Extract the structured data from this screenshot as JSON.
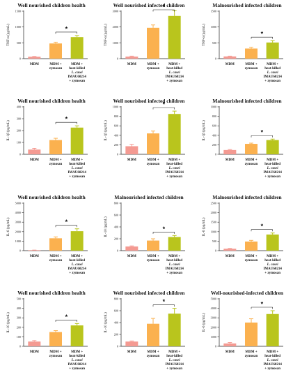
{
  "palette": {
    "mdm": "#f49a92",
    "zymosan": "#fbb14f",
    "heatkilled": "#b9c51d"
  },
  "categories": [
    [
      "MDM"
    ],
    [
      "MDM +",
      "zymosan"
    ],
    [
      "MDM +",
      "heat-killed",
      "L. casei",
      "IMAU60214",
      "+ zymosan"
    ]
  ],
  "chart_data": [
    {
      "type": "bar",
      "title": "Well nourished children health",
      "ylabel": "TNF-α (pg/mL)",
      "ylim": [
        0,
        1500
      ],
      "yticks": [
        "0",
        "500",
        "1000",
        "1500"
      ],
      "categories": [
        "MDM",
        "MDM + zymosan",
        "MDM + heat-killed L. casei IMAU60214 + zymosan"
      ],
      "values": [
        60,
        480,
        680
      ],
      "errors": [
        10,
        40,
        50
      ],
      "significance": "*"
    },
    {
      "type": "bar",
      "title": "Well nourished infected children",
      "ylabel": "TNF-α (pg/mL)",
      "ylim": [
        0,
        3000
      ],
      "yticks": [
        "0",
        "1000",
        "2000",
        "3000"
      ],
      "categories": [
        "MDM",
        "MDM + zymosan",
        "MDM + heat-killed L. casei IMAU60214 + zymosan"
      ],
      "values": [
        130,
        1950,
        2700
      ],
      "errors": [
        30,
        180,
        330
      ],
      "significance": "*"
    },
    {
      "type": "bar",
      "title": "Malnourished infected children",
      "ylabel": "TNF-α (pg/mL)",
      "ylim": [
        0,
        1500
      ],
      "yticks": [
        "0",
        "500",
        "1000",
        "1500"
      ],
      "categories": [
        "MDM",
        "MDM + zymosan",
        "MDM + heat-killed L. casei IMAU60214 + zymosan"
      ],
      "values": [
        70,
        320,
        510
      ],
      "errors": [
        10,
        40,
        60
      ],
      "significance": "*"
    },
    {
      "type": "bar",
      "title": "Well nourished children health",
      "ylabel": "IL-1β (pg/mL)",
      "ylim": [
        0,
        400
      ],
      "yticks": [
        "0",
        "100",
        "200",
        "300",
        "400"
      ],
      "categories": [
        "MDM",
        "MDM + zymosan",
        "MDM + heat-killed L. casei IMAU60214 + zymosan"
      ],
      "values": [
        40,
        120,
        225
      ],
      "errors": [
        10,
        15,
        15
      ],
      "significance": "*"
    },
    {
      "type": "bar",
      "title": "Well nourished infected children",
      "ylabel": "IL-1β (pg/mL)",
      "ylim": [
        0,
        1000
      ],
      "yticks": [
        "0",
        "200",
        "400",
        "600",
        "800",
        "1000"
      ],
      "categories": [
        "MDM",
        "MDM + zymosan",
        "MDM + heat-killed L. casei IMAU60214 + zymosan"
      ],
      "values": [
        170,
        440,
        850
      ],
      "errors": [
        40,
        50,
        60
      ],
      "significance": "*"
    },
    {
      "type": "bar",
      "title": "Malnourished infected children",
      "ylabel": "IL-1β (pg/mL)",
      "ylim": [
        0,
        1000
      ],
      "yticks": [
        "0",
        "200",
        "400",
        "600",
        "800",
        "1000"
      ],
      "categories": [
        "MDM",
        "MDM + zymosan",
        "MDM + heat-killed L. casei IMAU60214 + zymosan"
      ],
      "values": [
        90,
        220,
        300
      ],
      "errors": [
        10,
        15,
        20
      ],
      "significance": "*"
    },
    {
      "type": "bar",
      "title": "Well nourished children health",
      "ylabel": "IL-6 (pg/mL)",
      "ylim": [
        0,
        5000
      ],
      "yticks": [
        "0",
        "1000",
        "2000",
        "3000",
        "4000",
        "5000"
      ],
      "categories": [
        "MDM",
        "MDM + zymosan",
        "MDM + heat-killed L. casei IMAU60214 + zymosan"
      ],
      "values": [
        50,
        1300,
        2050
      ],
      "errors": [
        10,
        150,
        250
      ],
      "significance": "*"
    },
    {
      "type": "bar",
      "title": "Malnourished infected children",
      "ylabel": "IL-10 (pg/mL)",
      "ylim": [
        0,
        800
      ],
      "yticks": [
        "0",
        "200",
        "400",
        "600",
        "800"
      ],
      "categories": [
        "MDM",
        "MDM + zymosan",
        "MDM + heat-killed L. casei IMAU60214 + zymosan"
      ],
      "values": [
        70,
        170,
        230
      ],
      "errors": [
        10,
        30,
        25
      ],
      "significance": "*"
    },
    {
      "type": "bar",
      "title": "Malnourished infected children",
      "ylabel": "IL-6 (pg/mL)",
      "ylim": [
        0,
        2500
      ],
      "yticks": [
        "0",
        "500",
        "1000",
        "1500",
        "2000",
        "2500"
      ],
      "categories": [
        "MDM",
        "MDM + zymosan",
        "MDM + heat-killed L. casei IMAU60214 + zymosan"
      ],
      "values": [
        100,
        480,
        850
      ],
      "errors": [
        20,
        60,
        80
      ],
      "significance": "*"
    },
    {
      "type": "bar",
      "title": "Well nourished children health",
      "ylabel": "IL-10 (pg/mL)",
      "ylim": [
        0,
        500
      ],
      "yticks": [
        "0",
        "100",
        "200",
        "300",
        "400",
        "500"
      ],
      "categories": [
        "MDM",
        "MDM + zymosan",
        "MDM + heat-killed L. casei IMAU60214 + zymosan"
      ],
      "values": [
        50,
        150,
        220
      ],
      "errors": [
        10,
        15,
        20
      ],
      "significance": "*"
    },
    {
      "type": "bar",
      "title": "Well nourished infected children",
      "ylabel": "IL-10 (pg/mL)",
      "ylim": [
        0,
        800
      ],
      "yticks": [
        "0",
        "200",
        "400",
        "600",
        "800"
      ],
      "categories": [
        "MDM",
        "MDM + zymosan",
        "MDM + heat-killed L. casei IMAU60214 + zymosan"
      ],
      "values": [
        80,
        380,
        550
      ],
      "errors": [
        10,
        90,
        90
      ],
      "significance": "*"
    },
    {
      "type": "bar",
      "title": "Well-nourished-infected children",
      "ylabel": "IL-6 (pg/mL)",
      "ylim": [
        0,
        5000
      ],
      "yticks": [
        "0",
        "1000",
        "2000",
        "3000",
        "4000",
        "5000"
      ],
      "categories": [
        "MDM",
        "MDM + zymosan",
        "MDM + heat-killed L. casei IMAU60214 + zymosan"
      ],
      "values": [
        300,
        2500,
        3400
      ],
      "errors": [
        100,
        400,
        350
      ],
      "significance": "*"
    }
  ]
}
